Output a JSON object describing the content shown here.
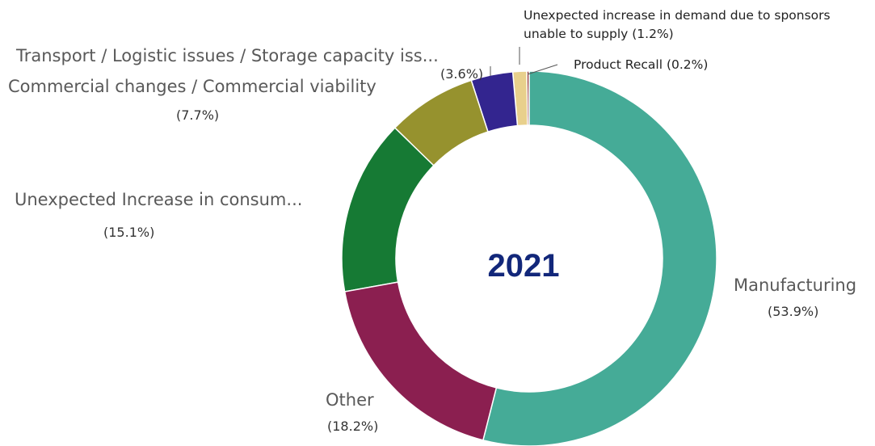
{
  "chart_data": {
    "type": "donut",
    "title": "2021",
    "categories": [
      "Manufacturing",
      "Other",
      "Unexpected Increase in consum...",
      "Commercial changes / Commercial viability",
      "Transport / Logistic issues / Storage capacity iss...",
      "Unexpected increase in demand due to sponsors unable to supply",
      "Product Recall"
    ],
    "values": [
      53.9,
      18.2,
      15.1,
      7.7,
      3.6,
      1.2,
      0.2
    ],
    "value_labels": [
      "(53.9%)",
      "(18.2%)",
      "(15.1%)",
      "(7.7%)",
      "(3.6%)",
      "(1.2%)",
      "(0.2%)"
    ],
    "colors": [
      "#45ab97",
      "#8b1f50",
      "#167a34",
      "#96922e",
      "#33258f",
      "#e8d08c",
      "#8b2020"
    ]
  }
}
